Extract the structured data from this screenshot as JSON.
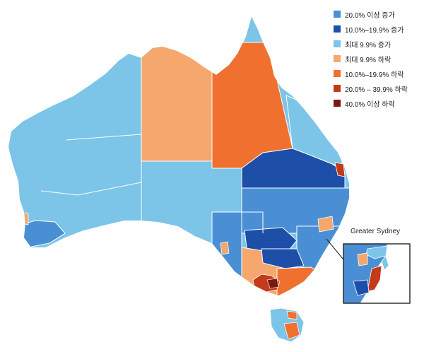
{
  "colors": {
    "increase_20_plus": "#4a8fd4",
    "increase_10_19": "#1e4fa8",
    "increase_up_to_9": "#7cc4e8",
    "decrease_up_to_9": "#f6a76e",
    "decrease_10_19": "#f07030",
    "decrease_20_39": "#c43a1a",
    "decrease_40_plus": "#7a1a0e",
    "border": "#ffffff"
  },
  "legend": {
    "items": [
      {
        "label": "20.0% 이상 증가",
        "color": "#4a8fd4"
      },
      {
        "label": "10.0%–19.9% 증가",
        "color": "#1e4fa8"
      },
      {
        "label": "최대 9.9% 증가",
        "color": "#7cc4e8"
      },
      {
        "label": "최대 9.9% 하락",
        "color": "#f6a76e"
      },
      {
        "label": "10.0%–19.9% 하락",
        "color": "#f07030"
      },
      {
        "label": "20.0% – 39.9% 하락",
        "color": "#c43a1a"
      },
      {
        "label": "40.0% 이상 하락",
        "color": "#7a1a0e"
      }
    ]
  },
  "inset": {
    "title": "Greater Sydney"
  }
}
